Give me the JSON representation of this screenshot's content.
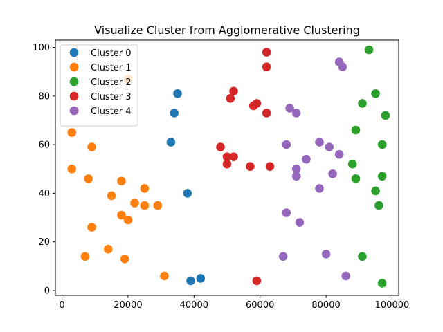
{
  "chart_data": {
    "type": "scatter",
    "title": "Visualize Cluster from Agglomerative Clustering",
    "xlabel": "",
    "ylabel": "",
    "xlim": [
      -2000,
      102000
    ],
    "ylim": [
      -2,
      103
    ],
    "xticks": [
      0,
      20000,
      40000,
      60000,
      80000,
      100000
    ],
    "yticks": [
      0,
      20,
      40,
      60,
      80,
      100
    ],
    "grid": false,
    "legend_position": "top-left",
    "series": [
      {
        "name": "Cluster 0",
        "color": "#1f77b4",
        "points": [
          [
            35000,
            81
          ],
          [
            34000,
            73
          ],
          [
            33000,
            61
          ],
          [
            38000,
            40
          ],
          [
            39000,
            4
          ],
          [
            42000,
            5
          ]
        ]
      },
      {
        "name": "Cluster 1",
        "color": "#ff7f0e",
        "points": [
          [
            20000,
            87
          ],
          [
            4000,
            74
          ],
          [
            3000,
            65
          ],
          [
            9000,
            59
          ],
          [
            3000,
            50
          ],
          [
            8000,
            46
          ],
          [
            18000,
            45
          ],
          [
            25000,
            42
          ],
          [
            15000,
            39
          ],
          [
            22000,
            36
          ],
          [
            25000,
            35
          ],
          [
            29000,
            35
          ],
          [
            18000,
            31
          ],
          [
            20000,
            29
          ],
          [
            9000,
            26
          ],
          [
            14000,
            17
          ],
          [
            7000,
            14
          ],
          [
            19000,
            13
          ],
          [
            31000,
            6
          ]
        ]
      },
      {
        "name": "Cluster 2",
        "color": "#2ca02c",
        "points": [
          [
            93000,
            99
          ],
          [
            95000,
            81
          ],
          [
            91000,
            77
          ],
          [
            98000,
            72
          ],
          [
            89000,
            66
          ],
          [
            97000,
            60
          ],
          [
            88000,
            52
          ],
          [
            97000,
            47
          ],
          [
            89000,
            46
          ],
          [
            95000,
            41
          ],
          [
            96000,
            35
          ],
          [
            91000,
            14
          ],
          [
            97000,
            3
          ]
        ]
      },
      {
        "name": "Cluster 3",
        "color": "#d62728",
        "points": [
          [
            62000,
            98
          ],
          [
            62000,
            92
          ],
          [
            52000,
            82
          ],
          [
            51000,
            79
          ],
          [
            59000,
            77
          ],
          [
            58000,
            76
          ],
          [
            62000,
            73
          ],
          [
            48000,
            59
          ],
          [
            50000,
            55
          ],
          [
            52000,
            55
          ],
          [
            50000,
            52
          ],
          [
            57000,
            51
          ],
          [
            63000,
            51
          ],
          [
            59000,
            4
          ]
        ]
      },
      {
        "name": "Cluster 4",
        "color": "#9467bd",
        "points": [
          [
            84000,
            94
          ],
          [
            85000,
            92
          ],
          [
            69000,
            75
          ],
          [
            71000,
            73
          ],
          [
            68000,
            60
          ],
          [
            78000,
            61
          ],
          [
            81000,
            59
          ],
          [
            84000,
            56
          ],
          [
            74000,
            54
          ],
          [
            71000,
            50
          ],
          [
            82000,
            48
          ],
          [
            71000,
            47
          ],
          [
            78000,
            42
          ],
          [
            68000,
            32
          ],
          [
            72000,
            28
          ],
          [
            67000,
            14
          ],
          [
            80000,
            15
          ],
          [
            86000,
            6
          ]
        ]
      }
    ]
  }
}
